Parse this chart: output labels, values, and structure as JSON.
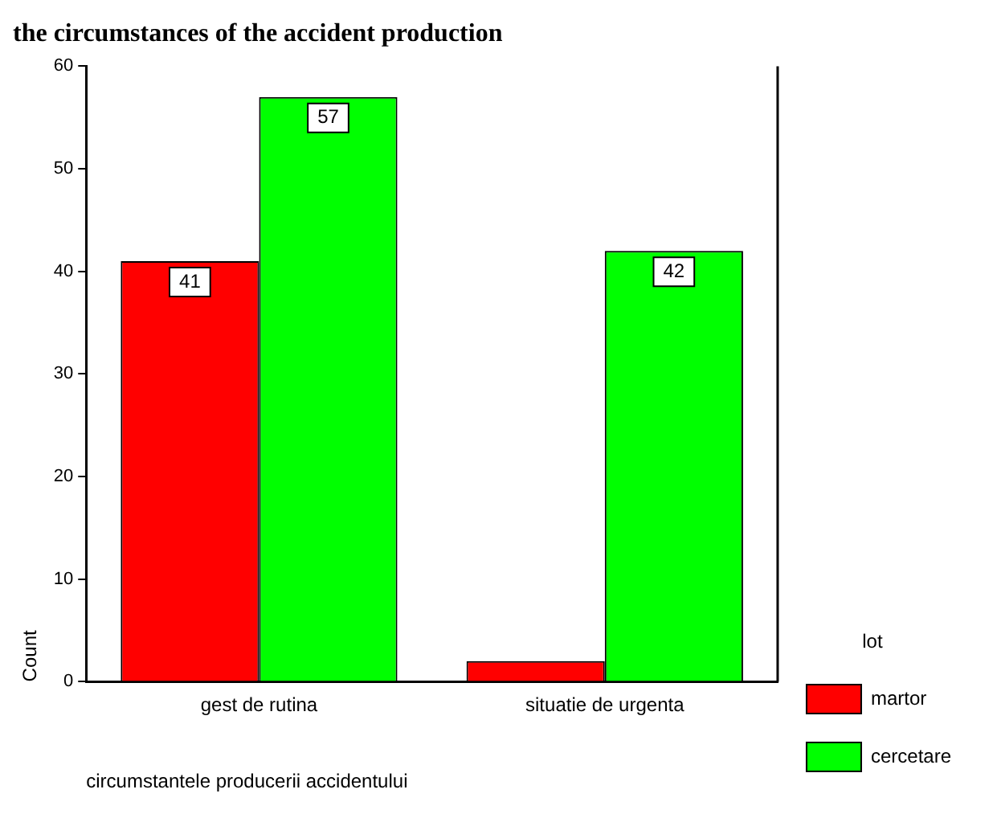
{
  "chart_data": {
    "type": "bar",
    "title": "the circumstances of the accident production",
    "xlabel": "circumstantele producerii accidentului",
    "ylabel": "Count",
    "legend_title": "lot",
    "categories": [
      "gest de rutina",
      "situatie de urgenta"
    ],
    "series": [
      {
        "name": "martor",
        "color": "#ff0000",
        "values": [
          41,
          2
        ],
        "value_labels": [
          "41",
          null
        ]
      },
      {
        "name": "cercetare",
        "color": "#00ff00",
        "values": [
          57,
          42
        ],
        "value_labels": [
          "57",
          "42"
        ]
      }
    ],
    "ylim": [
      0,
      60
    ],
    "yticks": [
      0,
      10,
      20,
      30,
      40,
      50,
      60
    ],
    "grid": false,
    "legend": "right"
  }
}
